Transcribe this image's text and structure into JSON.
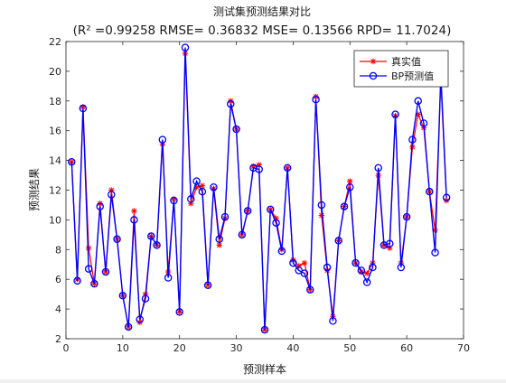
{
  "chart_data": {
    "type": "line",
    "title": "测试集预测结果对比",
    "subtitle": "(R² =0.99258 RMSE= 0.36832 MSE= 0.13566 RPD= 11.7024)",
    "xlabel": "预测样本",
    "ylabel": "预测结果",
    "xlim": [
      0,
      70
    ],
    "ylim": [
      2,
      22
    ],
    "xticks": [
      0,
      10,
      20,
      30,
      40,
      50,
      60,
      70
    ],
    "yticks": [
      2,
      4,
      6,
      8,
      10,
      12,
      14,
      16,
      18,
      20,
      22
    ],
    "grid": false,
    "legend_position": "top-right",
    "x": [
      1,
      2,
      3,
      4,
      5,
      6,
      7,
      8,
      9,
      10,
      11,
      12,
      13,
      14,
      15,
      16,
      17,
      18,
      19,
      20,
      21,
      22,
      23,
      24,
      25,
      26,
      27,
      28,
      29,
      30,
      31,
      32,
      33,
      34,
      35,
      36,
      37,
      38,
      39,
      40,
      41,
      42,
      43,
      44,
      45,
      46,
      47,
      48,
      49,
      50,
      51,
      52,
      53,
      54,
      55,
      56,
      57,
      58,
      59,
      60,
      61,
      62,
      63,
      64,
      65,
      66,
      67
    ],
    "series": [
      {
        "name": "真实值",
        "color": "#ff0000",
        "marker": "asterisk",
        "values": [
          13.9,
          6.0,
          17.6,
          8.1,
          5.7,
          11.1,
          6.5,
          12.0,
          8.7,
          4.9,
          2.8,
          10.6,
          3.1,
          5.0,
          8.9,
          8.3,
          15.1,
          6.5,
          11.4,
          3.8,
          21.2,
          11.1,
          12.2,
          12.3,
          5.6,
          12.1,
          8.3,
          10.1,
          18.0,
          16.1,
          9.0,
          10.6,
          13.6,
          13.7,
          2.6,
          10.7,
          10.1,
          8.0,
          13.5,
          7.3,
          6.9,
          7.1,
          5.3,
          18.3,
          10.3,
          6.6,
          3.5,
          8.6,
          10.9,
          12.6,
          7.1,
          6.5,
          6.4,
          7.1,
          13.0,
          8.3,
          8.1,
          17.0,
          7.1,
          10.2,
          14.9,
          17.1,
          16.2,
          11.9,
          9.3,
          19.4,
          11.3
        ]
      },
      {
        "name": "BP预测值",
        "color": "#0000ff",
        "marker": "circle",
        "values": [
          13.9,
          5.9,
          17.5,
          6.7,
          5.7,
          10.9,
          6.5,
          11.7,
          8.7,
          4.9,
          2.8,
          10.0,
          3.3,
          4.7,
          8.9,
          8.3,
          15.4,
          6.1,
          11.3,
          3.8,
          21.6,
          11.4,
          12.6,
          11.9,
          5.6,
          12.2,
          8.7,
          10.2,
          17.8,
          16.1,
          9.0,
          10.6,
          13.5,
          13.4,
          2.6,
          10.7,
          9.8,
          7.9,
          13.5,
          7.1,
          6.6,
          6.4,
          5.3,
          18.1,
          11.0,
          6.8,
          3.2,
          8.6,
          10.9,
          12.2,
          7.1,
          6.6,
          5.8,
          6.8,
          13.5,
          8.3,
          8.4,
          17.1,
          6.8,
          10.2,
          15.4,
          18.0,
          16.5,
          11.9,
          7.8,
          19.8,
          11.5
        ]
      }
    ]
  }
}
